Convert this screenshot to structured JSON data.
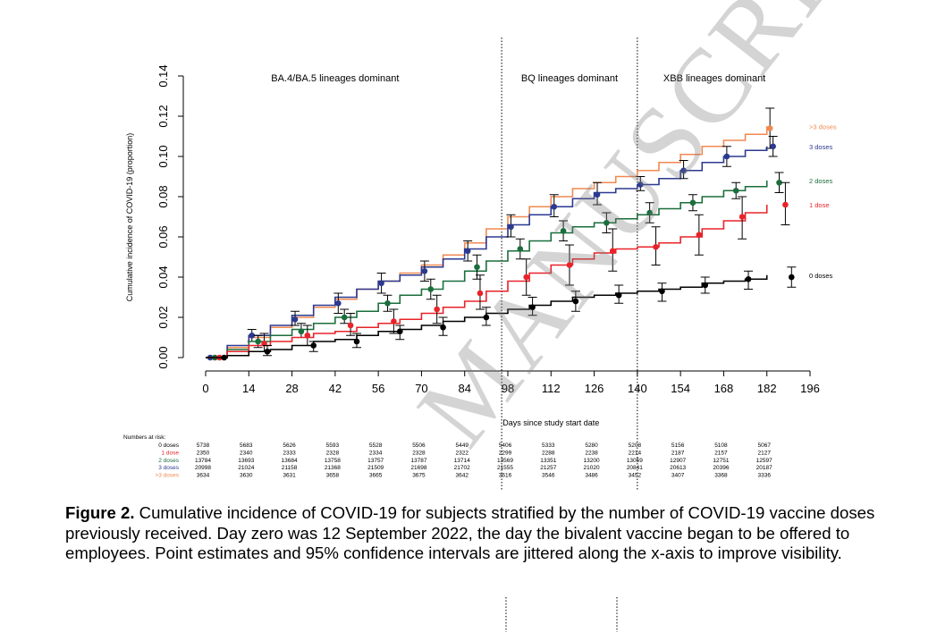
{
  "chart_data": {
    "type": "line",
    "title": "",
    "xlabel": "Days since study start date",
    "ylabel": "Cumulative incidence of COVID-19 (proportion)",
    "xlim": [
      0,
      196
    ],
    "ylim": [
      0,
      0.14
    ],
    "x_ticks": [
      0,
      14,
      28,
      42,
      56,
      70,
      84,
      98,
      112,
      126,
      140,
      154,
      168,
      182,
      196
    ],
    "y_ticks": [
      "0.00",
      "0.02",
      "0.04",
      "0.06",
      "0.08",
      "0.10",
      "0.12",
      "0.14"
    ],
    "grid": false,
    "legend": "labels at right end of lines",
    "period_dividers": [
      96,
      140
    ],
    "periods": [
      {
        "label": "BA.4/BA.5 lineages dominant",
        "x_center": 42
      },
      {
        "label": "BQ lineages dominant",
        "x_center": 118
      },
      {
        "label": "XBB lineages dominant",
        "x_center": 165
      }
    ],
    "series": [
      {
        "name": ">3 doses",
        "color": "#ef8a52",
        "x": [
          0,
          7,
          14,
          21,
          28,
          35,
          42,
          49,
          56,
          63,
          70,
          77,
          84,
          91,
          98,
          105,
          112,
          119,
          126,
          133,
          140,
          147,
          154,
          161,
          168,
          175,
          182
        ],
        "y": [
          0,
          0.005,
          0.01,
          0.015,
          0.02,
          0.025,
          0.029,
          0.034,
          0.038,
          0.042,
          0.046,
          0.051,
          0.057,
          0.064,
          0.07,
          0.075,
          0.08,
          0.084,
          0.087,
          0.09,
          0.093,
          0.097,
          0.101,
          0.105,
          0.108,
          0.111,
          0.115
        ],
        "points": [
          [
            183,
            0.114
          ]
        ],
        "ci": [
          [
            183,
            0.104,
            0.124
          ]
        ]
      },
      {
        "name": "3 doses",
        "color": "#2b3990",
        "x": [
          0,
          7,
          14,
          21,
          28,
          35,
          42,
          49,
          56,
          63,
          70,
          77,
          84,
          91,
          98,
          105,
          112,
          119,
          126,
          133,
          140,
          147,
          154,
          161,
          168,
          175,
          182
        ],
        "y": [
          0,
          0.006,
          0.011,
          0.016,
          0.021,
          0.026,
          0.03,
          0.034,
          0.038,
          0.041,
          0.045,
          0.049,
          0.054,
          0.06,
          0.066,
          0.071,
          0.075,
          0.079,
          0.082,
          0.084,
          0.086,
          0.089,
          0.093,
          0.097,
          0.1,
          0.103,
          0.105
        ],
        "points": [
          [
            1.5,
            0
          ],
          [
            15,
            0.011
          ],
          [
            29,
            0.019
          ],
          [
            43,
            0.027
          ],
          [
            57,
            0.037
          ],
          [
            71,
            0.043
          ],
          [
            85,
            0.053
          ],
          [
            99,
            0.065
          ],
          [
            113,
            0.075
          ],
          [
            127,
            0.081
          ],
          [
            141,
            0.086
          ],
          [
            155,
            0.093
          ],
          [
            169,
            0.1
          ],
          [
            184,
            0.105
          ]
        ],
        "ci": [
          [
            15,
            0.008,
            0.014
          ],
          [
            29,
            0.016,
            0.023
          ],
          [
            43,
            0.022,
            0.032
          ],
          [
            57,
            0.032,
            0.042
          ],
          [
            71,
            0.038,
            0.048
          ],
          [
            85,
            0.048,
            0.058
          ],
          [
            99,
            0.06,
            0.071
          ],
          [
            113,
            0.07,
            0.081
          ],
          [
            127,
            0.076,
            0.087
          ],
          [
            141,
            0.083,
            0.09
          ],
          [
            155,
            0.089,
            0.098
          ],
          [
            169,
            0.095,
            0.105
          ],
          [
            184,
            0.1,
            0.11
          ]
        ]
      },
      {
        "name": "2 doses",
        "color": "#1a6e3c",
        "x": [
          0,
          7,
          14,
          21,
          28,
          35,
          42,
          49,
          56,
          63,
          70,
          77,
          84,
          91,
          98,
          105,
          112,
          119,
          126,
          133,
          140,
          147,
          154,
          161,
          168,
          175,
          182
        ],
        "y": [
          0,
          0.004,
          0.008,
          0.011,
          0.014,
          0.017,
          0.02,
          0.023,
          0.027,
          0.031,
          0.034,
          0.038,
          0.043,
          0.048,
          0.053,
          0.058,
          0.062,
          0.065,
          0.067,
          0.069,
          0.071,
          0.074,
          0.077,
          0.08,
          0.083,
          0.085,
          0.088
        ],
        "points": [
          [
            3,
            0
          ],
          [
            17,
            0.008
          ],
          [
            31,
            0.013
          ],
          [
            45,
            0.02
          ],
          [
            59,
            0.027
          ],
          [
            73,
            0.034
          ],
          [
            88,
            0.045
          ],
          [
            102,
            0.054
          ],
          [
            116,
            0.063
          ],
          [
            130,
            0.067
          ],
          [
            144,
            0.072
          ],
          [
            158,
            0.077
          ],
          [
            172,
            0.083
          ],
          [
            186,
            0.087
          ]
        ],
        "ci": [
          [
            17,
            0.005,
            0.011
          ],
          [
            31,
            0.01,
            0.017
          ],
          [
            45,
            0.017,
            0.024
          ],
          [
            59,
            0.023,
            0.031
          ],
          [
            73,
            0.029,
            0.039
          ],
          [
            88,
            0.039,
            0.051
          ],
          [
            102,
            0.049,
            0.059
          ],
          [
            116,
            0.058,
            0.068
          ],
          [
            130,
            0.062,
            0.072
          ],
          [
            144,
            0.067,
            0.077
          ],
          [
            158,
            0.073,
            0.081
          ],
          [
            172,
            0.079,
            0.087
          ],
          [
            186,
            0.082,
            0.092
          ]
        ]
      },
      {
        "name": "1 dose",
        "color": "#e8232a",
        "x": [
          0,
          7,
          14,
          21,
          28,
          35,
          42,
          49,
          56,
          63,
          70,
          77,
          84,
          91,
          98,
          105,
          112,
          119,
          126,
          133,
          140,
          147,
          154,
          161,
          168,
          175,
          182
        ],
        "y": [
          0,
          0.003,
          0.006,
          0.008,
          0.01,
          0.012,
          0.013,
          0.015,
          0.017,
          0.019,
          0.022,
          0.025,
          0.028,
          0.033,
          0.038,
          0.042,
          0.046,
          0.049,
          0.052,
          0.054,
          0.055,
          0.057,
          0.06,
          0.064,
          0.068,
          0.072,
          0.076
        ],
        "points": [
          [
            4.5,
            0
          ],
          [
            19,
            0.007
          ],
          [
            33,
            0.011
          ],
          [
            47,
            0.016
          ],
          [
            61,
            0.018
          ],
          [
            75,
            0.024
          ],
          [
            89,
            0.032
          ],
          [
            104,
            0.04
          ],
          [
            118,
            0.046
          ],
          [
            132,
            0.053
          ],
          [
            146,
            0.055
          ],
          [
            160,
            0.061
          ],
          [
            174,
            0.07
          ],
          [
            188,
            0.076
          ]
        ],
        "ci": [
          [
            19,
            0.003,
            0.012
          ],
          [
            33,
            0.006,
            0.016
          ],
          [
            47,
            0.011,
            0.022
          ],
          [
            61,
            0.012,
            0.024
          ],
          [
            75,
            0.017,
            0.031
          ],
          [
            89,
            0.024,
            0.041
          ],
          [
            104,
            0.031,
            0.049
          ],
          [
            118,
            0.036,
            0.056
          ],
          [
            132,
            0.043,
            0.064
          ],
          [
            146,
            0.046,
            0.065
          ],
          [
            160,
            0.051,
            0.071
          ],
          [
            174,
            0.059,
            0.08
          ],
          [
            188,
            0.066,
            0.087
          ]
        ]
      },
      {
        "name": "0 doses",
        "color": "#000000",
        "x": [
          0,
          7,
          14,
          21,
          28,
          35,
          42,
          49,
          56,
          63,
          70,
          77,
          84,
          91,
          98,
          105,
          112,
          119,
          126,
          133,
          140,
          147,
          154,
          161,
          168,
          175,
          182
        ],
        "y": [
          0,
          0.001,
          0.003,
          0.004,
          0.006,
          0.008,
          0.009,
          0.011,
          0.013,
          0.014,
          0.016,
          0.018,
          0.02,
          0.022,
          0.024,
          0.026,
          0.028,
          0.03,
          0.031,
          0.032,
          0.033,
          0.034,
          0.035,
          0.037,
          0.038,
          0.039,
          0.041
        ],
        "points": [
          [
            6,
            0
          ],
          [
            20,
            0.003
          ],
          [
            35,
            0.006
          ],
          [
            49,
            0.008
          ],
          [
            63,
            0.013
          ],
          [
            77,
            0.015
          ],
          [
            91,
            0.02
          ],
          [
            106,
            0.025
          ],
          [
            120,
            0.028
          ],
          [
            134,
            0.031
          ],
          [
            148,
            0.033
          ],
          [
            162,
            0.036
          ],
          [
            176,
            0.039
          ],
          [
            190,
            0.04
          ]
        ],
        "ci": [
          [
            20,
            0.001,
            0.006
          ],
          [
            35,
            0.003,
            0.008
          ],
          [
            49,
            0.005,
            0.012
          ],
          [
            63,
            0.009,
            0.016
          ],
          [
            77,
            0.011,
            0.02
          ],
          [
            91,
            0.016,
            0.025
          ],
          [
            106,
            0.021,
            0.03
          ],
          [
            120,
            0.023,
            0.033
          ],
          [
            134,
            0.027,
            0.036
          ],
          [
            148,
            0.028,
            0.037
          ],
          [
            162,
            0.032,
            0.04
          ],
          [
            176,
            0.034,
            0.043
          ],
          [
            190,
            0.035,
            0.045
          ]
        ]
      }
    ],
    "risk_table": {
      "title": "Numbers at risk:",
      "rows": [
        {
          "label": "0 doses",
          "color": "#000000",
          "values": [
            "5738",
            "5683",
            "5626",
            "5593",
            "5528",
            "5506",
            "5449",
            "5406",
            "5333",
            "5280",
            "5208",
            "5156",
            "5108",
            "5067"
          ]
        },
        {
          "label": "1 dose",
          "color": "#e8232a",
          "values": [
            "2350",
            "2340",
            "2333",
            "2328",
            "2334",
            "2328",
            "2322",
            "2299",
            "2288",
            "2238",
            "2214",
            "2187",
            "2157",
            "2127"
          ]
        },
        {
          "label": "2 doses",
          "color": "#1a6e3c",
          "values": [
            "13784",
            "13693",
            "13684",
            "13758",
            "13757",
            "13787",
            "13714",
            "13569",
            "13351",
            "13200",
            "13059",
            "12907",
            "12751",
            "12597"
          ]
        },
        {
          "label": "3 doses",
          "color": "#2b3990",
          "values": [
            "20998",
            "21024",
            "21158",
            "21368",
            "21509",
            "21698",
            "21702",
            "21555",
            "21257",
            "21020",
            "20841",
            "20613",
            "20396",
            "20187"
          ]
        },
        {
          "label": ">3 doses",
          "color": "#ef8a52",
          "values": [
            "3634",
            "3630",
            "3631",
            "3658",
            "3665",
            "3675",
            "3642",
            "3616",
            "3546",
            "3486",
            "3452",
            "3407",
            "3368",
            "3336"
          ]
        }
      ]
    }
  },
  "caption": {
    "label": "Figure 2.",
    "text": " Cumulative incidence of COVID-19 for subjects stratified by the number of COVID-19 vaccine doses previously received. Day zero was 12 September 2022, the day the bivalent vaccine began to be offered to employees. Point estimates and 95% confidence intervals are jittered along the x-axis to improve visibility."
  },
  "watermark": "MANUSCRIPT"
}
